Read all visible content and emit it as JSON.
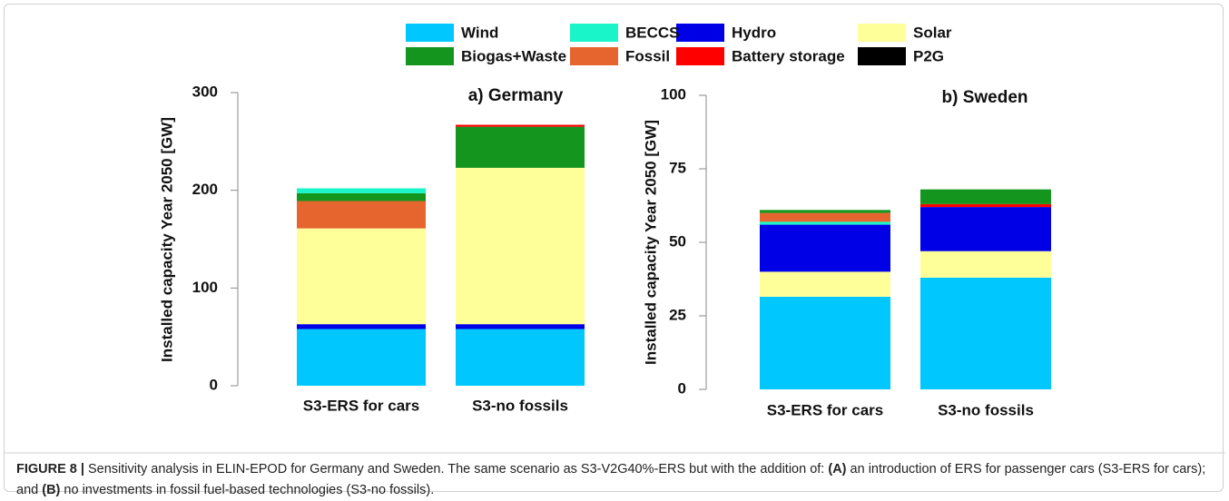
{
  "chart_data": [
    {
      "type": "bar",
      "stacked": true,
      "title": "a) Germany",
      "ylabel": "Installed capacity Year 2050 [GW]",
      "categories": [
        "S3-ERS for cars",
        "S3-no fossils"
      ],
      "series": [
        {
          "name": "Wind",
          "color": "#00c8ff",
          "values": [
            58,
            58
          ]
        },
        {
          "name": "Hydro",
          "color": "#0000e6",
          "values": [
            5,
            5
          ]
        },
        {
          "name": "Solar",
          "color": "#ffff99",
          "values": [
            98,
            160
          ]
        },
        {
          "name": "Fossil",
          "color": "#e6642d",
          "values": [
            28,
            0
          ]
        },
        {
          "name": "Biogas+Waste",
          "color": "#14961e",
          "values": [
            8,
            42
          ]
        },
        {
          "name": "BECCS",
          "color": "#19f5c8",
          "values": [
            5,
            0
          ]
        },
        {
          "name": "Battery storage",
          "color": "#ff0000",
          "values": [
            0,
            2
          ]
        },
        {
          "name": "P2G",
          "color": "#000000",
          "values": [
            0,
            0
          ]
        }
      ],
      "ylim": [
        0,
        300
      ],
      "yticks": [
        0,
        100,
        200,
        300
      ]
    },
    {
      "type": "bar",
      "stacked": true,
      "title": "b) Sweden",
      "ylabel": "Installed capacity Year 2050 [GW]",
      "categories": [
        "S3-ERS for cars",
        "S3-no fossils"
      ],
      "series": [
        {
          "name": "Wind",
          "color": "#00c8ff",
          "values": [
            31.5,
            38
          ]
        },
        {
          "name": "Solar",
          "color": "#ffff99",
          "values": [
            8.5,
            9
          ]
        },
        {
          "name": "Hydro",
          "color": "#0000e6",
          "values": [
            16,
            15
          ]
        },
        {
          "name": "BECCS",
          "color": "#19f5c8",
          "values": [
            1,
            0
          ]
        },
        {
          "name": "Fossil",
          "color": "#e6642d",
          "values": [
            3,
            0
          ]
        },
        {
          "name": "Battery storage",
          "color": "#ff0000",
          "values": [
            0,
            1
          ]
        },
        {
          "name": "Biogas+Waste",
          "color": "#14961e",
          "values": [
            1,
            5
          ]
        },
        {
          "name": "P2G",
          "color": "#000000",
          "values": [
            0,
            0
          ]
        }
      ],
      "ylim": [
        0,
        100
      ],
      "yticks": [
        0,
        25,
        50,
        75,
        100
      ]
    }
  ],
  "caption": {
    "figure_label": "FIGURE 8 |",
    "text_1": "Sensitivity analysis in ELIN-EPOD for Germany and Sweden. The same scenario as S3-V2G40%-ERS but with the addition of:",
    "label_a": "(A)",
    "text_2": "an introduction of ERS for passenger cars (S3-ERS for cars); and",
    "label_b": "(B)",
    "text_3": "no investments in fossil fuel-based technologies (S3-no fossils)."
  }
}
